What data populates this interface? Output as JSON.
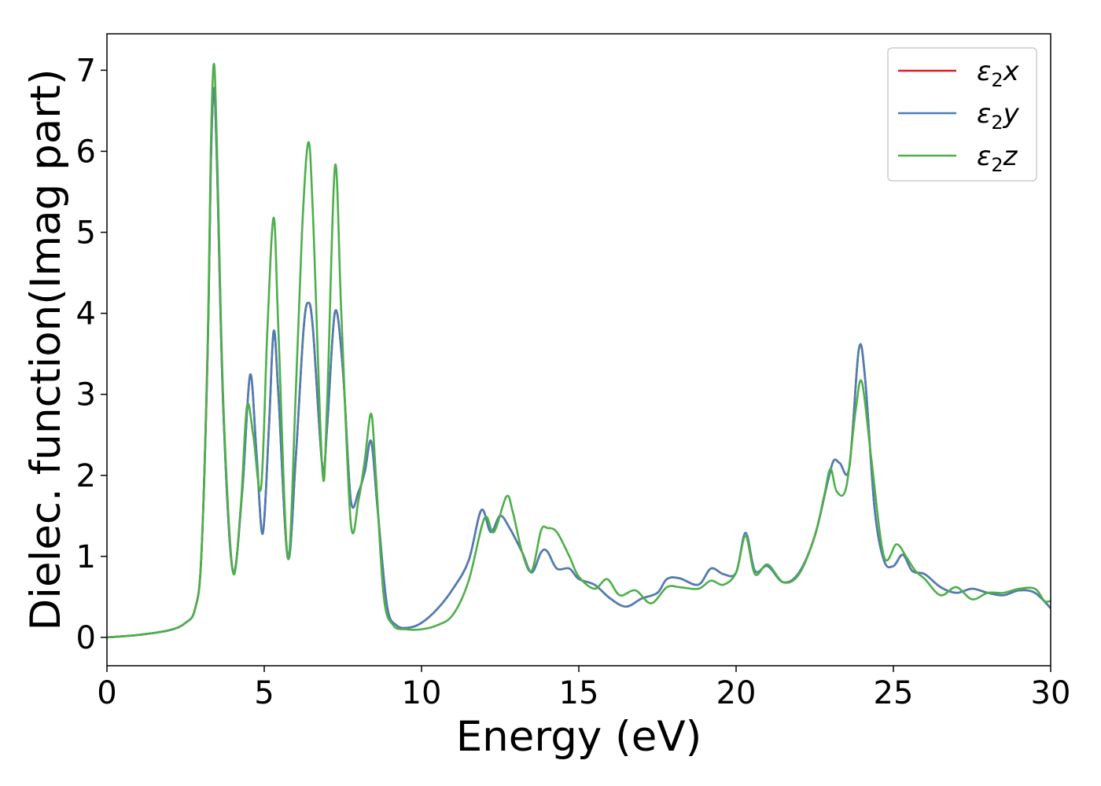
{
  "chart_data": {
    "type": "line",
    "xlabel": "Energy (eV)",
    "ylabel": "Dielec. function(Imag part)",
    "xlim": [
      0,
      30
    ],
    "ylim": [
      -0.35,
      7.45
    ],
    "xticks": [
      0,
      5,
      10,
      15,
      20,
      25,
      30
    ],
    "yticks": [
      0,
      1,
      2,
      3,
      4,
      5,
      6,
      7
    ],
    "grid": false,
    "legend_position": "top-right",
    "series": [
      {
        "name": "ε₂x",
        "legend_base": "ε",
        "legend_sub": "2",
        "legend_var": "x",
        "color": "#e41a1c",
        "x": [
          0,
          1,
          2,
          2.5,
          2.8,
          3.0,
          3.2,
          3.3,
          3.4,
          3.5,
          3.7,
          4.0,
          4.3,
          4.55,
          4.75,
          4.95,
          5.15,
          5.3,
          5.45,
          5.75,
          6.0,
          6.25,
          6.4,
          6.55,
          6.85,
          7.0,
          7.25,
          7.5,
          7.75,
          8.0,
          8.2,
          8.4,
          8.6,
          8.9,
          9.2,
          9.6,
          10.0,
          10.5,
          11.0,
          11.5,
          11.9,
          12.2,
          12.5,
          12.8,
          13.2,
          13.5,
          13.8,
          14.0,
          14.3,
          14.7,
          15.0,
          15.5,
          16.0,
          16.5,
          17.0,
          17.5,
          17.8,
          18.2,
          18.8,
          19.2,
          19.6,
          20.0,
          20.3,
          20.6,
          21.0,
          21.5,
          22.0,
          22.5,
          22.9,
          23.1,
          23.3,
          23.6,
          23.9,
          24.1,
          24.4,
          24.7,
          25.0,
          25.3,
          25.6,
          26.0,
          26.5,
          27.0,
          27.5,
          28.0,
          28.5,
          29.0,
          29.5,
          30.0
        ],
        "y": [
          0.0,
          0.03,
          0.09,
          0.18,
          0.35,
          1.0,
          3.5,
          5.8,
          6.78,
          5.8,
          2.8,
          0.82,
          1.8,
          3.24,
          2.3,
          1.28,
          2.6,
          3.78,
          3.0,
          0.98,
          2.2,
          3.8,
          4.13,
          3.8,
          2.1,
          2.6,
          4.02,
          3.3,
          1.7,
          1.8,
          2.05,
          2.42,
          1.6,
          0.4,
          0.15,
          0.12,
          0.18,
          0.35,
          0.6,
          0.95,
          1.57,
          1.3,
          1.5,
          1.35,
          1.05,
          0.8,
          1.05,
          1.06,
          0.85,
          0.85,
          0.72,
          0.65,
          0.48,
          0.38,
          0.48,
          0.55,
          0.72,
          0.73,
          0.65,
          0.85,
          0.78,
          0.8,
          1.29,
          0.82,
          0.88,
          0.68,
          0.8,
          1.25,
          1.9,
          2.18,
          2.15,
          2.1,
          3.55,
          3.2,
          1.6,
          0.95,
          0.88,
          1.02,
          0.82,
          0.78,
          0.62,
          0.55,
          0.6,
          0.55,
          0.52,
          0.58,
          0.55,
          0.36
        ]
      },
      {
        "name": "ε₂y",
        "legend_base": "ε",
        "legend_sub": "2",
        "legend_var": "y",
        "color": "#4a7fb5",
        "x": [
          0,
          1,
          2,
          2.5,
          2.8,
          3.0,
          3.2,
          3.3,
          3.4,
          3.5,
          3.7,
          4.0,
          4.3,
          4.55,
          4.75,
          4.95,
          5.15,
          5.3,
          5.45,
          5.75,
          6.0,
          6.25,
          6.4,
          6.55,
          6.85,
          7.0,
          7.25,
          7.5,
          7.75,
          8.0,
          8.2,
          8.4,
          8.6,
          8.9,
          9.2,
          9.6,
          10.0,
          10.5,
          11.0,
          11.5,
          11.9,
          12.2,
          12.5,
          12.8,
          13.2,
          13.5,
          13.8,
          14.0,
          14.3,
          14.7,
          15.0,
          15.5,
          16.0,
          16.5,
          17.0,
          17.5,
          17.8,
          18.2,
          18.8,
          19.2,
          19.6,
          20.0,
          20.3,
          20.6,
          21.0,
          21.5,
          22.0,
          22.5,
          22.9,
          23.1,
          23.3,
          23.6,
          23.9,
          24.1,
          24.4,
          24.7,
          25.0,
          25.3,
          25.6,
          26.0,
          26.5,
          27.0,
          27.5,
          28.0,
          28.5,
          29.0,
          29.5,
          30.0
        ],
        "y": [
          0.0,
          0.03,
          0.09,
          0.18,
          0.35,
          1.0,
          3.5,
          5.8,
          6.78,
          5.8,
          2.8,
          0.82,
          1.8,
          3.24,
          2.3,
          1.28,
          2.6,
          3.78,
          3.0,
          0.98,
          2.2,
          3.8,
          4.13,
          3.8,
          2.1,
          2.6,
          4.02,
          3.3,
          1.7,
          1.8,
          2.05,
          2.42,
          1.6,
          0.4,
          0.15,
          0.12,
          0.18,
          0.35,
          0.6,
          0.95,
          1.57,
          1.3,
          1.5,
          1.35,
          1.05,
          0.8,
          1.05,
          1.06,
          0.85,
          0.85,
          0.72,
          0.65,
          0.48,
          0.38,
          0.48,
          0.55,
          0.72,
          0.73,
          0.65,
          0.85,
          0.78,
          0.8,
          1.29,
          0.82,
          0.88,
          0.68,
          0.8,
          1.25,
          1.9,
          2.18,
          2.15,
          2.1,
          3.55,
          3.2,
          1.6,
          0.95,
          0.88,
          1.02,
          0.82,
          0.78,
          0.62,
          0.55,
          0.6,
          0.55,
          0.52,
          0.58,
          0.55,
          0.36
        ]
      },
      {
        "name": "ε₂z",
        "legend_base": "ε",
        "legend_sub": "2",
        "legend_var": "z",
        "color": "#4daf4a",
        "x": [
          0,
          1,
          2,
          2.5,
          2.8,
          3.0,
          3.2,
          3.3,
          3.4,
          3.5,
          3.7,
          4.0,
          4.25,
          4.45,
          4.65,
          4.9,
          5.1,
          5.3,
          5.45,
          5.75,
          6.0,
          6.2,
          6.4,
          6.55,
          6.85,
          7.0,
          7.25,
          7.45,
          7.75,
          8.0,
          8.2,
          8.4,
          8.55,
          8.8,
          9.1,
          9.5,
          10.0,
          10.5,
          11.0,
          11.5,
          12.0,
          12.3,
          12.7,
          12.9,
          13.2,
          13.5,
          13.8,
          14.0,
          14.3,
          14.7,
          15.0,
          15.5,
          15.9,
          16.3,
          16.8,
          17.3,
          17.8,
          18.2,
          18.8,
          19.2,
          19.6,
          20.0,
          20.3,
          20.6,
          21.0,
          21.5,
          22.0,
          22.5,
          22.8,
          23.0,
          23.2,
          23.5,
          23.8,
          24.0,
          24.3,
          24.7,
          25.1,
          25.4,
          25.7,
          26.0,
          26.5,
          27.0,
          27.5,
          28.0,
          28.5,
          29.0,
          29.5,
          29.8,
          30.0
        ],
        "y": [
          0.0,
          0.03,
          0.09,
          0.18,
          0.35,
          1.0,
          3.6,
          6.0,
          7.08,
          6.0,
          2.9,
          0.82,
          1.6,
          2.85,
          2.5,
          1.85,
          3.8,
          5.18,
          3.8,
          0.98,
          3.0,
          5.0,
          6.11,
          5.2,
          2.05,
          2.9,
          5.82,
          4.0,
          1.42,
          1.7,
          2.2,
          2.76,
          2.0,
          0.5,
          0.15,
          0.1,
          0.1,
          0.15,
          0.28,
          0.7,
          1.47,
          1.3,
          1.74,
          1.55,
          1.05,
          0.82,
          1.32,
          1.35,
          1.3,
          1.0,
          0.75,
          0.6,
          0.72,
          0.52,
          0.58,
          0.42,
          0.62,
          0.62,
          0.6,
          0.7,
          0.65,
          0.8,
          1.25,
          0.78,
          0.9,
          0.68,
          0.78,
          1.25,
          1.75,
          2.08,
          1.8,
          1.85,
          2.8,
          3.15,
          2.2,
          1.0,
          1.15,
          1.0,
          0.82,
          0.72,
          0.52,
          0.62,
          0.47,
          0.55,
          0.55,
          0.6,
          0.6,
          0.45,
          0.45
        ]
      }
    ]
  }
}
